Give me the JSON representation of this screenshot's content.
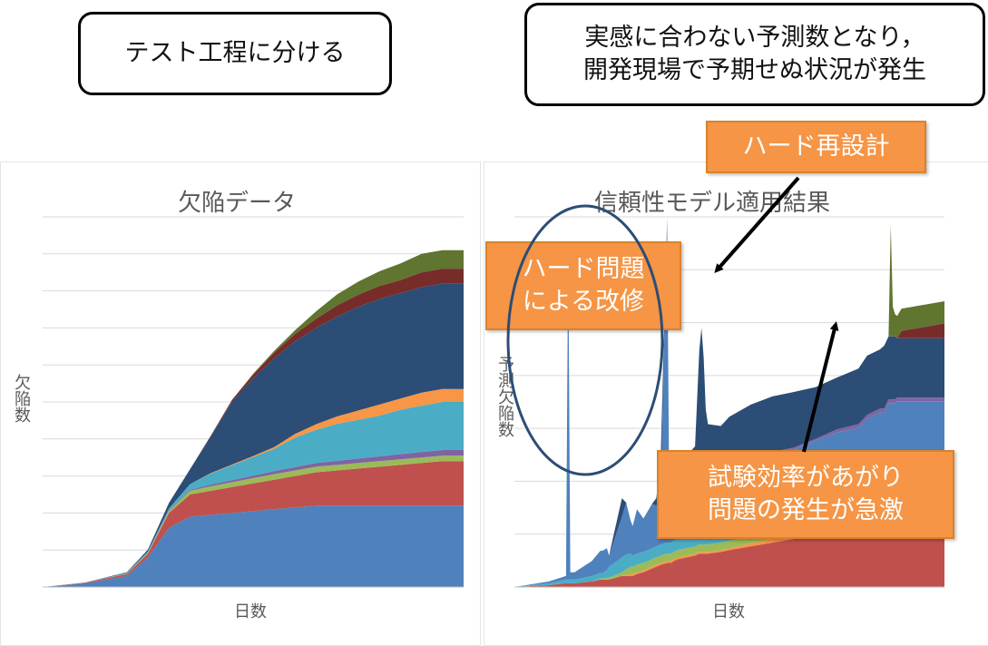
{
  "callouts": {
    "left": "テスト工程に分ける",
    "right_line1": "実感に合わない予測数となり，",
    "right_line2": "開発現場で予期せぬ状況が発生"
  },
  "notes": {
    "hard_redesign": "ハード再設計",
    "hard_problem_line1": "ハード問題",
    "hard_problem_line2": "による改修",
    "test_efficiency_line1": "試験効率があがり",
    "test_efficiency_line2": "問題の発生が急激"
  },
  "colors": {
    "blue": "#4f81bd",
    "red": "#c0504d",
    "green": "#9bbb59",
    "purple": "#8064a2",
    "cyan": "#4bacc6",
    "orange": "#f79646",
    "navy": "#2c4d75",
    "darkred": "#772c2a",
    "olive": "#5f7530",
    "callout_orange": "#f59545"
  },
  "chart_data": [
    {
      "type": "area",
      "title": "欠陥データ",
      "xlabel": "日数",
      "ylabel": "欠陥数",
      "ylim": [
        0,
        100
      ],
      "grid": true,
      "x": [
        0,
        10,
        20,
        25,
        30,
        35,
        40,
        45,
        50,
        55,
        60,
        65,
        70,
        75,
        80,
        85,
        90,
        95,
        100
      ],
      "series": [
        {
          "color": "blue",
          "values": [
            0,
            1,
            3,
            8,
            16,
            19,
            19.5,
            20,
            20.5,
            21,
            21.5,
            22,
            22,
            22,
            22,
            22,
            22,
            22,
            22
          ]
        },
        {
          "color": "red",
          "values": [
            0,
            0.2,
            0.5,
            1,
            4,
            6,
            6.5,
            7,
            7.5,
            8,
            8.5,
            9,
            9.5,
            10,
            10.5,
            11,
            11.5,
            12,
            12
          ]
        },
        {
          "color": "green",
          "values": [
            0,
            0,
            0.1,
            0.2,
            0.5,
            1,
            1.2,
            1.3,
            1.4,
            1.5,
            1.5,
            1.5,
            1.5,
            1.5,
            1.5,
            1.5,
            1.5,
            1.5,
            1.5
          ]
        },
        {
          "color": "purple",
          "values": [
            0,
            0,
            0,
            0.1,
            0.2,
            0.3,
            0.5,
            0.6,
            0.7,
            0.8,
            0.9,
            1,
            1.1,
            1.2,
            1.3,
            1.4,
            1.5,
            1.5,
            1.5
          ]
        },
        {
          "color": "cyan",
          "values": [
            0,
            0,
            0.2,
            0.3,
            0.5,
            1.5,
            3,
            4,
            5,
            6,
            8,
            9,
            10,
            10.5,
            11,
            12,
            12.5,
            13,
            13
          ]
        },
        {
          "color": "orange",
          "values": [
            0,
            0,
            0,
            0,
            0,
            0,
            0.1,
            0.2,
            0.3,
            0.5,
            1,
            1.5,
            2,
            2.5,
            3,
            3,
            3.5,
            3.5,
            3.5
          ]
        },
        {
          "color": "navy",
          "values": [
            0,
            0,
            0.2,
            0.5,
            1.5,
            4,
            10,
            17,
            21,
            24,
            25,
            26,
            27,
            28,
            28.5,
            28.5,
            28.5,
            28.5,
            28.5
          ]
        },
        {
          "color": "darkred",
          "values": [
            0,
            0,
            0,
            0,
            0,
            0,
            0.2,
            0.5,
            1,
            1.5,
            2,
            2.5,
            3,
            3.3,
            3.5,
            3.5,
            4,
            4,
            4
          ]
        },
        {
          "color": "olive",
          "values": [
            0,
            0,
            0,
            0,
            0,
            0,
            0,
            0,
            0.2,
            0.5,
            1,
            2,
            3,
            3.5,
            4,
            4.5,
            5,
            5,
            5
          ]
        }
      ]
    },
    {
      "type": "area",
      "title": "信頼性モデル適用結果",
      "xlabel": "日数",
      "ylabel": "予測欠陥数",
      "ylim": [
        0,
        100
      ],
      "grid": true,
      "x": [
        0,
        8,
        12,
        12.5,
        13,
        13.5,
        14,
        18,
        20,
        20.5,
        21.5,
        22,
        25,
        26,
        27,
        27.5,
        28.5,
        30,
        32,
        33,
        34,
        35.5,
        36,
        36.5,
        37,
        38,
        40,
        42,
        43,
        43.5,
        44,
        44.5,
        45,
        48,
        50,
        55,
        60,
        65,
        70,
        75,
        80,
        82,
        85,
        86,
        87,
        87.5,
        88,
        88.5,
        89,
        90,
        95,
        100
      ],
      "series": [
        {
          "color": "red",
          "values": [
            0,
            0.5,
            1,
            1,
            1,
            1,
            1,
            1.5,
            2,
            2,
            2,
            2,
            3,
            3,
            3,
            3,
            3.5,
            4,
            5,
            5.5,
            6,
            6.5,
            6.5,
            6.5,
            7,
            7.5,
            8,
            8.5,
            9,
            9,
            9,
            9,
            9,
            9.5,
            10,
            11,
            12,
            13,
            14,
            15,
            16,
            16.5,
            17,
            17,
            17.5,
            17.5,
            17.5,
            17.5,
            18,
            18,
            18,
            18
          ]
        },
        {
          "color": "orange",
          "values": [
            0,
            0,
            0,
            0,
            0,
            0,
            0,
            0,
            0,
            0,
            0,
            0,
            0,
            0.3,
            0.5,
            0.5,
            0.5,
            0.5,
            0.5,
            0.5,
            0.5,
            0.5,
            0.5,
            0.5,
            0.5,
            0.5,
            0.5,
            0.5,
            0.5,
            0.5,
            0.5,
            0.5,
            0.5,
            0.5,
            0.5,
            0.8,
            1,
            1.2,
            1.5,
            1.8,
            2,
            2,
            2.2,
            2.2,
            2.2,
            2.2,
            2.2,
            2.2,
            2.2,
            2.2,
            2.2,
            2.2
          ]
        },
        {
          "color": "green",
          "values": [
            0,
            0,
            0,
            0,
            0,
            0,
            0,
            0,
            0.3,
            0.3,
            0.5,
            0.5,
            1,
            1.5,
            2,
            2,
            2,
            2,
            2,
            2,
            2,
            2,
            2,
            2,
            2,
            2,
            2,
            2,
            2,
            2,
            2,
            2,
            2,
            2,
            2,
            2,
            2,
            2,
            2,
            2,
            2,
            2,
            2,
            2,
            2,
            2,
            2,
            2,
            2,
            2,
            2,
            2
          ]
        },
        {
          "color": "cyan",
          "values": [
            0,
            0.5,
            1,
            1,
            1,
            1,
            1,
            1.5,
            1.5,
            1.5,
            2,
            3,
            4,
            4,
            3.5,
            3,
            3,
            3,
            3,
            3,
            3,
            3,
            3,
            3,
            3,
            3,
            3,
            3,
            3,
            3,
            3,
            3,
            3,
            3,
            3,
            3,
            3,
            3,
            3,
            3,
            3,
            3,
            3,
            3,
            3,
            3,
            3,
            3,
            3,
            3,
            3,
            3
          ]
        },
        {
          "color": "blue",
          "values": [
            0,
            0.5,
            1,
            90,
            2,
            2,
            2,
            4,
            6,
            6,
            6,
            3,
            11,
            14,
            9,
            8,
            12,
            9,
            12,
            11,
            13,
            88,
            14,
            13,
            10,
            13,
            12,
            16,
            13,
            13,
            13,
            13,
            13,
            14,
            15,
            17,
            18,
            18,
            19,
            20,
            20,
            22,
            23,
            23,
            25,
            25,
            25,
            25,
            25,
            25,
            25,
            25
          ]
        },
        {
          "color": "purple",
          "values": [
            0,
            0,
            0,
            0,
            0,
            0,
            0,
            0,
            0,
            0,
            0,
            0,
            0,
            0,
            0,
            0,
            0,
            0,
            0,
            0,
            0,
            0,
            0,
            0,
            0,
            0,
            0,
            0,
            0.5,
            0.5,
            0.5,
            0.5,
            0.5,
            0.5,
            0.5,
            0.5,
            0.5,
            0.5,
            0.5,
            0.8,
            1,
            1,
            1,
            1,
            1,
            1,
            1,
            1,
            1,
            1,
            1,
            1
          ]
        },
        {
          "color": "navy",
          "values": [
            0,
            0,
            0,
            0,
            0,
            0,
            0,
            0,
            0,
            0,
            0,
            0,
            5,
            0,
            0,
            0,
            0,
            0,
            0,
            2,
            10,
            0,
            0,
            0,
            0,
            8,
            10,
            8,
            36,
            42,
            34,
            20,
            16,
            14,
            15,
            15,
            15,
            15,
            14,
            14,
            15,
            16,
            16,
            17,
            17,
            17,
            17,
            17,
            16,
            16,
            16,
            16
          ]
        },
        {
          "color": "darkred",
          "values": [
            0,
            0,
            0,
            0,
            0,
            0,
            0,
            0,
            0,
            0,
            0,
            0,
            0,
            0,
            0,
            0,
            0,
            0,
            0,
            0,
            0,
            0,
            0,
            0,
            0,
            0,
            0,
            0,
            0,
            0,
            0,
            0,
            0,
            0,
            0,
            0,
            0,
            0,
            0,
            0,
            0,
            0,
            0,
            0,
            0,
            0,
            0,
            0,
            0,
            2,
            3,
            4
          ]
        },
        {
          "color": "olive",
          "values": [
            0,
            0,
            0,
            0,
            0,
            0,
            0,
            0,
            0,
            0,
            0,
            0,
            0,
            0,
            0,
            0,
            0,
            0,
            0,
            0,
            0,
            0,
            0,
            0,
            0,
            0,
            0,
            0,
            0,
            0,
            0,
            0,
            0,
            0,
            0,
            0,
            0,
            0,
            0,
            0,
            0,
            0,
            0,
            0,
            0,
            30,
            8,
            6,
            6,
            6,
            6,
            6
          ]
        }
      ]
    }
  ]
}
